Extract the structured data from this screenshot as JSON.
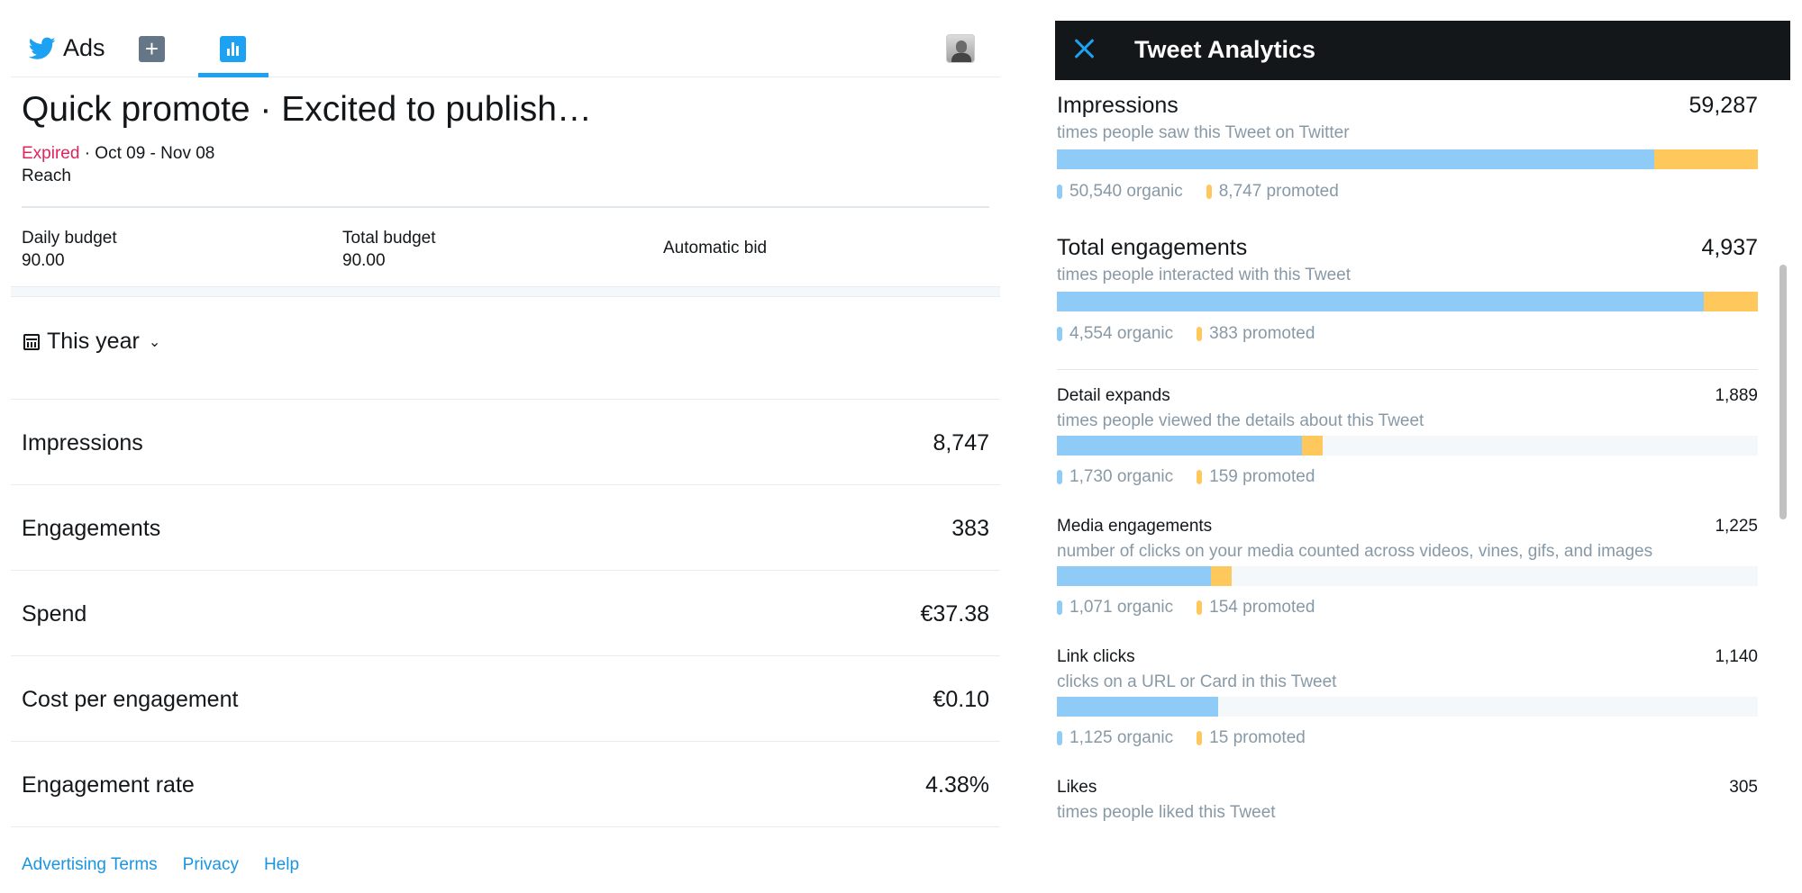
{
  "header": {
    "brand": "Ads",
    "plus_label": "+"
  },
  "campaign": {
    "title": "Quick promote · Excited to publish…",
    "status": "Expired",
    "dates": " · Oct 09 - Nov 08",
    "objective": "Reach",
    "daily_budget_label": "Daily budget",
    "daily_budget_value": "90.00",
    "total_budget_label": "Total budget",
    "total_budget_value": "90.00",
    "bid_label": "Automatic bid"
  },
  "date_range": {
    "label": "This year"
  },
  "metrics": [
    {
      "label": "Impressions",
      "value": "8,747"
    },
    {
      "label": "Engagements",
      "value": "383"
    },
    {
      "label": "Spend",
      "value": "€37.38"
    },
    {
      "label": "Cost per engagement",
      "value": "€0.10"
    },
    {
      "label": "Engagement rate",
      "value": "4.38%"
    }
  ],
  "footer": {
    "links": [
      "Advertising Terms",
      "Privacy",
      "Help"
    ]
  },
  "colors": {
    "accent": "#1da1f2",
    "organic": "#8ecbf6",
    "promoted": "#ffc85c",
    "expired": "#e0245e",
    "panel_header": "#14171a"
  },
  "panel": {
    "title": "Tweet Analytics",
    "stats": [
      {
        "name": "Impressions",
        "total": "59,287",
        "desc": "times people saw this Tweet on Twitter",
        "organic": "50,540 organic",
        "promoted": "8,747 promoted",
        "organic_fraction": 0.8525,
        "promoted_fraction": 0.1475
      },
      {
        "name": "Total engagements",
        "total": "4,937",
        "desc": "times people interacted with this Tweet",
        "organic": "4,554 organic",
        "promoted": "383 promoted",
        "organic_fraction": 0.9224,
        "promoted_fraction": 0.0776
      },
      {
        "name": "Detail expands",
        "total": "1,889",
        "desc": "times people viewed the details about this Tweet",
        "organic": "1,730 organic",
        "promoted": "159 promoted",
        "organic_fraction": 0.35,
        "promoted_fraction": 0.03
      },
      {
        "name": "Media engagements",
        "total": "1,225",
        "desc": "number of clicks on your media counted across videos, vines, gifs, and images",
        "organic": "1,071 organic",
        "promoted": "154 promoted",
        "organic_fraction": 0.22,
        "promoted_fraction": 0.03
      },
      {
        "name": "Link clicks",
        "total": "1,140",
        "desc": "clicks on a URL or Card in this Tweet",
        "organic": "1,125 organic",
        "promoted": "15 promoted",
        "organic_fraction": 0.23,
        "promoted_fraction": 0.0
      },
      {
        "name": "Likes",
        "total": "305",
        "desc": "times people liked this Tweet"
      }
    ]
  }
}
